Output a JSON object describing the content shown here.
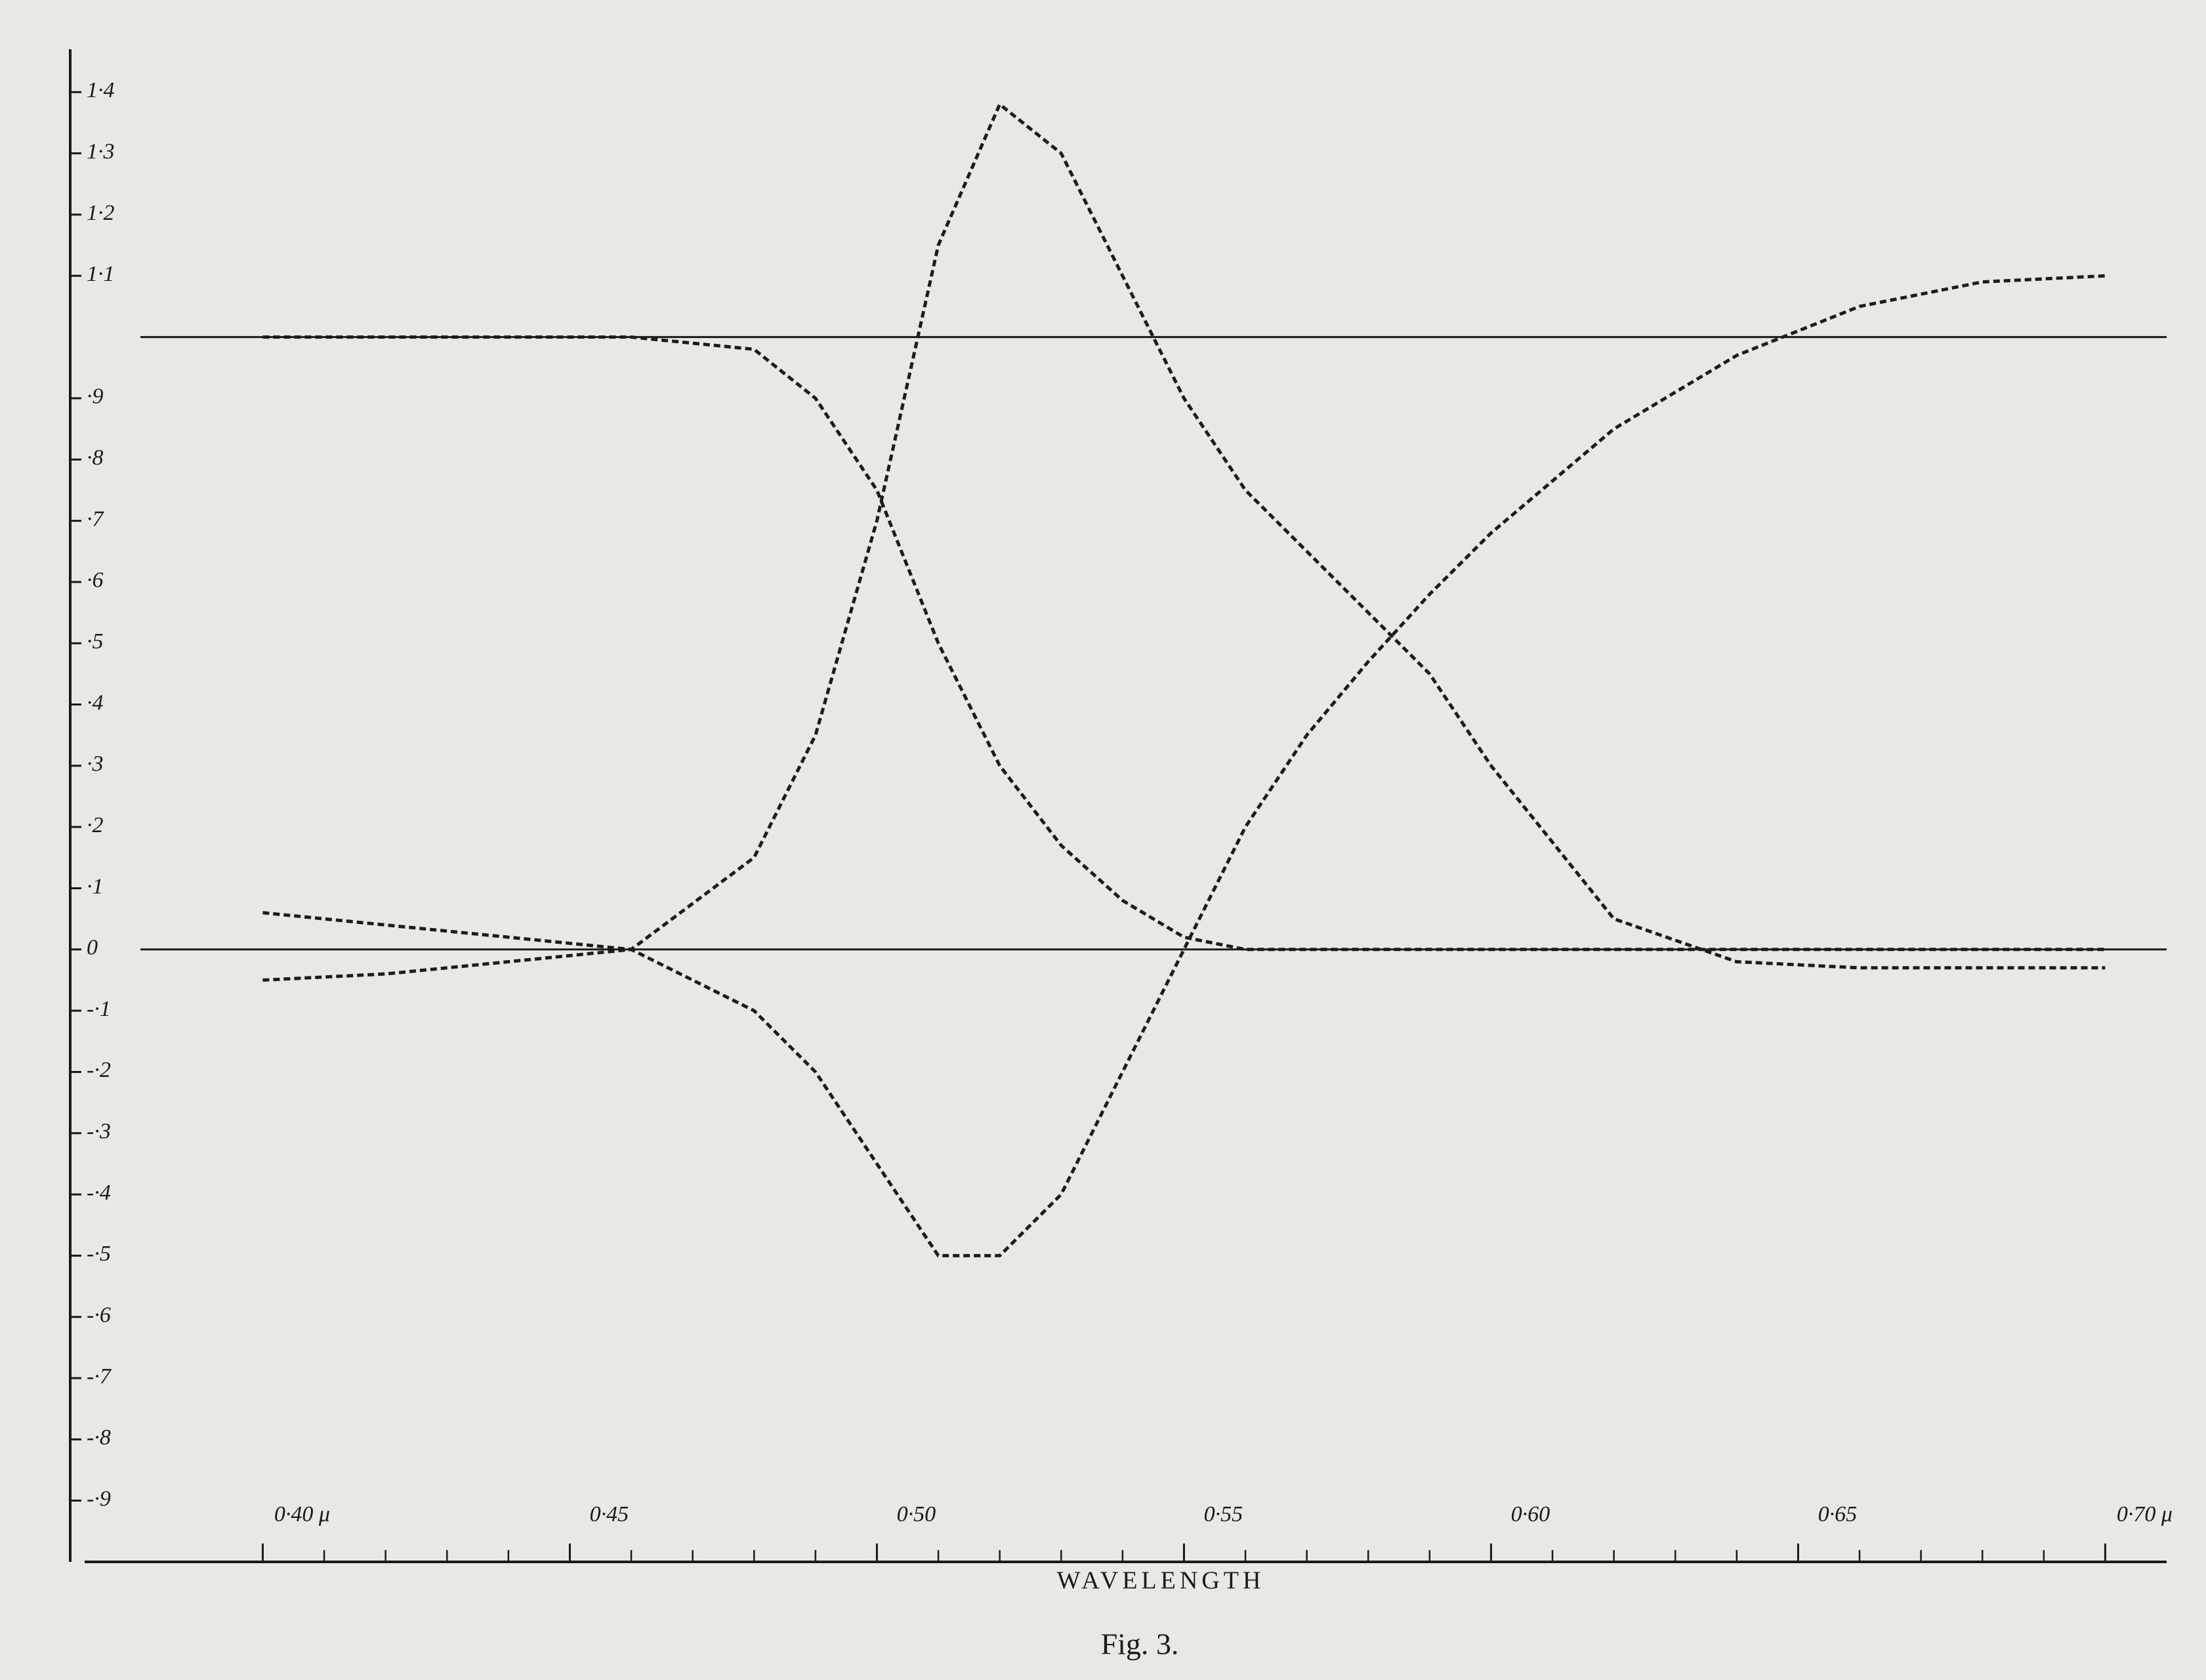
{
  "chart_data": {
    "type": "line",
    "x_label": "WAVELENGTH",
    "caption": "Fig. 3.",
    "x": [
      0.4,
      0.42,
      0.44,
      0.46,
      0.48,
      0.49,
      0.5,
      0.51,
      0.52,
      0.53,
      0.54,
      0.55,
      0.56,
      0.57,
      0.58,
      0.59,
      0.6,
      0.62,
      0.64,
      0.66,
      0.68,
      0.7
    ],
    "series": [
      {
        "color": "#1c1c1c",
        "values": [
          1.0,
          1.0,
          1.0,
          1.0,
          0.98,
          0.9,
          0.75,
          0.5,
          0.3,
          0.17,
          0.08,
          0.02,
          0,
          0,
          0,
          0,
          0,
          0,
          0,
          0,
          0,
          0
        ]
      },
      {
        "color": "#1c1c1c",
        "values": [
          0.06,
          0.04,
          0.02,
          0,
          0.15,
          0.35,
          0.7,
          1.15,
          1.38,
          1.3,
          1.1,
          0.9,
          0.75,
          0.65,
          0.55,
          0.45,
          0.3,
          0.05,
          -0.02,
          -0.03,
          -0.03,
          -0.03
        ]
      },
      {
        "color": "#1c1c1c",
        "values": [
          -0.05,
          -0.04,
          -0.02,
          0,
          -0.1,
          -0.2,
          -0.35,
          -0.5,
          -0.5,
          -0.4,
          -0.2,
          0,
          0.2,
          0.35,
          0.47,
          0.58,
          0.68,
          0.85,
          0.97,
          1.05,
          1.09,
          1.1
        ]
      }
    ],
    "xlim": [
      0.371,
      0.71
    ],
    "ylim": [
      -1.0,
      1.47
    ],
    "xticks": [
      {
        "value": 0.4,
        "label": "0·40 μ"
      },
      {
        "value": 0.45,
        "label": "0·45"
      },
      {
        "value": 0.5,
        "label": "0·50"
      },
      {
        "value": 0.55,
        "label": "0·55"
      },
      {
        "value": 0.6,
        "label": "0·60"
      },
      {
        "value": 0.65,
        "label": "0·65"
      },
      {
        "value": 0.7,
        "label": "0·70 μ"
      }
    ],
    "xminorticks": [
      0.41,
      0.42,
      0.43,
      0.44,
      0.46,
      0.47,
      0.48,
      0.49,
      0.51,
      0.52,
      0.53,
      0.54,
      0.56,
      0.57,
      0.58,
      0.59,
      0.61,
      0.62,
      0.63,
      0.64,
      0.66,
      0.67,
      0.68,
      0.69
    ],
    "yticks": [
      {
        "value": 1.4,
        "label": "1·4"
      },
      {
        "value": 1.3,
        "label": "1·3"
      },
      {
        "value": 1.2,
        "label": "1·2"
      },
      {
        "value": 1.1,
        "label": "1·1"
      },
      {
        "value": 0.9,
        "label": "·9"
      },
      {
        "value": 0.8,
        "label": "·8"
      },
      {
        "value": 0.7,
        "label": "·7"
      },
      {
        "value": 0.6,
        "label": "·6"
      },
      {
        "value": 0.5,
        "label": "·5"
      },
      {
        "value": 0.4,
        "label": "·4"
      },
      {
        "value": 0.3,
        "label": "·3"
      },
      {
        "value": 0.2,
        "label": "·2"
      },
      {
        "value": 0.1,
        "label": "·1"
      },
      0,
      {
        "value": -0.1,
        "label": "-·1"
      },
      {
        "value": -0.2,
        "label": "-·2"
      },
      {
        "value": -0.3,
        "label": "-·3"
      },
      {
        "value": -0.4,
        "label": "-·4"
      },
      {
        "value": -0.5,
        "label": "-·5"
      },
      {
        "value": -0.6,
        "label": "-·6"
      },
      {
        "value": -0.7,
        "label": "-·7"
      },
      {
        "value": -0.8,
        "label": "-·8"
      },
      {
        "value": -0.9,
        "label": "-·9"
      }
    ],
    "reference_lines": [
      0,
      1.0
    ],
    "grid": false
  }
}
